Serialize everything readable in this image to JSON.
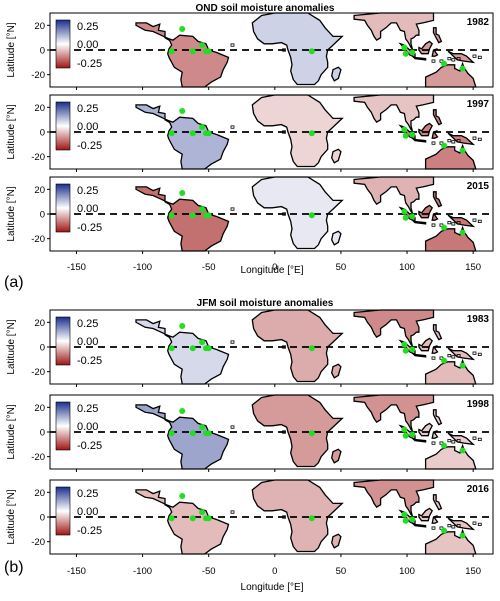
{
  "chart_data": [
    {
      "type": "heatmap",
      "title": "OND soil moisture anomalies",
      "panel_label": "(a)",
      "xlabel": "Longitude [°E]",
      "ylabel": "Latitude [°N]",
      "x_ticks": [
        -150,
        -100,
        -50,
        0,
        50,
        100,
        150
      ],
      "y_ticks": [
        20,
        0,
        -20
      ],
      "xlim": [
        -170,
        165
      ],
      "ylim": [
        -30,
        30
      ],
      "colorbar_ticks": [
        "0.25",
        "0.00",
        "-0.25"
      ],
      "colorbar_range": [
        -0.25,
        0.25
      ],
      "colors": {
        "positive": "#1b2f8a",
        "zero": "#ffffff",
        "negative": "#9e1616",
        "markers": "#22dd22"
      },
      "panels": [
        {
          "year": "1982",
          "anomaly": {
            "south_america": -0.14,
            "africa": 0.06,
            "south_asia": -0.08,
            "maritime": -0.12
          }
        },
        {
          "year": "1997",
          "anomaly": {
            "south_america": 0.1,
            "africa": -0.05,
            "south_asia": -0.07,
            "maritime": -0.15
          }
        },
        {
          "year": "2015",
          "anomaly": {
            "south_america": -0.17,
            "africa": 0.03,
            "south_asia": -0.09,
            "maritime": -0.16
          }
        }
      ]
    },
    {
      "type": "heatmap",
      "title": "JFM soil moisture anomalies",
      "panel_label": "(b)",
      "xlabel": "Longitude [°E]",
      "ylabel": "Latitude [°N]",
      "x_ticks": [
        -150,
        -100,
        -50,
        0,
        50,
        100,
        150
      ],
      "y_ticks": [
        20,
        0,
        -20
      ],
      "xlim": [
        -170,
        165
      ],
      "ylim": [
        -30,
        30
      ],
      "colorbar_ticks": [
        "0.25",
        "0.00",
        "-0.25"
      ],
      "colorbar_range": [
        -0.25,
        0.25
      ],
      "colors": {
        "positive": "#1b2f8a",
        "zero": "#ffffff",
        "negative": "#9e1616",
        "markers": "#22dd22"
      },
      "panels": [
        {
          "year": "1983",
          "anomaly": {
            "south_america": 0.05,
            "africa": -0.1,
            "south_asia": -0.14,
            "maritime": -0.08
          }
        },
        {
          "year": "1998",
          "anomaly": {
            "south_america": 0.12,
            "africa": -0.12,
            "south_asia": -0.13,
            "maritime": -0.06
          }
        },
        {
          "year": "2016",
          "anomaly": {
            "south_america": -0.08,
            "africa": -0.09,
            "south_asia": -0.13,
            "maritime": -0.07
          }
        }
      ]
    }
  ]
}
